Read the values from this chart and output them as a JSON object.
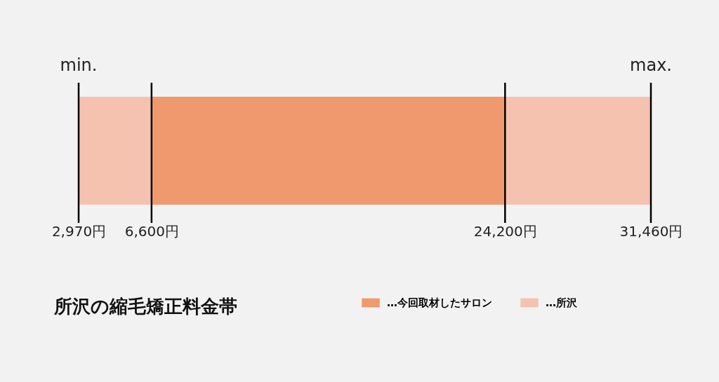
{
  "chart_data": {
    "type": "bar",
    "orientation": "horizontal",
    "title": "所沢の縮毛矯正料金帯",
    "categories": [
      null
    ],
    "series": [
      {
        "name": "…所沢",
        "color": "#f5c2b0",
        "base": [
          2970
        ],
        "values": [
          28490
        ]
      },
      {
        "name": "…今回取材したサロン",
        "color": "#f0996f",
        "base": [
          6600
        ],
        "values": [
          17600
        ]
      }
    ],
    "xlim": [
      2970,
      31460
    ],
    "xticks": [
      {
        "value": 2970,
        "label": "2,970円"
      },
      {
        "value": 6600,
        "label": "6,600円"
      },
      {
        "value": 24200,
        "label": "24,200円"
      },
      {
        "value": 31460,
        "label": "31,460円"
      }
    ],
    "annotations": [
      "min.",
      "max."
    ],
    "legend": "bottom right"
  }
}
